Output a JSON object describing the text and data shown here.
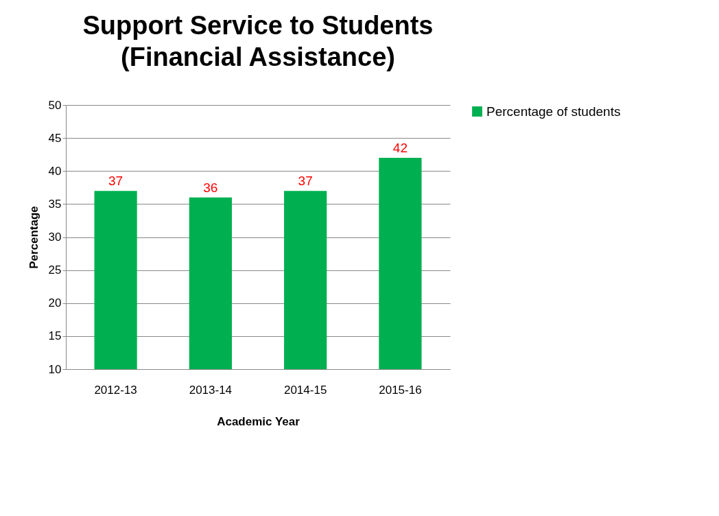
{
  "chart_data": {
    "type": "bar",
    "title": "Support Service to Students\n(Financial Assistance)",
    "xlabel": "Academic Year",
    "ylabel": "Percentage",
    "categories": [
      "2012-13",
      "2013-14",
      "2014-15",
      "2015-16"
    ],
    "series": [
      {
        "name": "Percentage of students",
        "color": "#00b050",
        "values": [
          37,
          36,
          37,
          42
        ]
      }
    ],
    "ylim": [
      10,
      50
    ],
    "yticks": [
      10,
      15,
      20,
      25,
      30,
      35,
      40,
      45,
      50
    ],
    "grid": "y",
    "legend": "right",
    "data_labels": true
  }
}
